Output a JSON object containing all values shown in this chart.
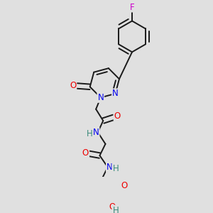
{
  "background_color": "#e0e0e0",
  "bond_color": "#1a1a1a",
  "bond_width": 1.4,
  "dbo": 0.012,
  "atom_colors": {
    "C": "#000000",
    "N": "#0000ee",
    "O": "#ee0000",
    "F": "#cc00cc",
    "H": "#3a8a7a"
  },
  "fs": 8.5,
  "title": ""
}
